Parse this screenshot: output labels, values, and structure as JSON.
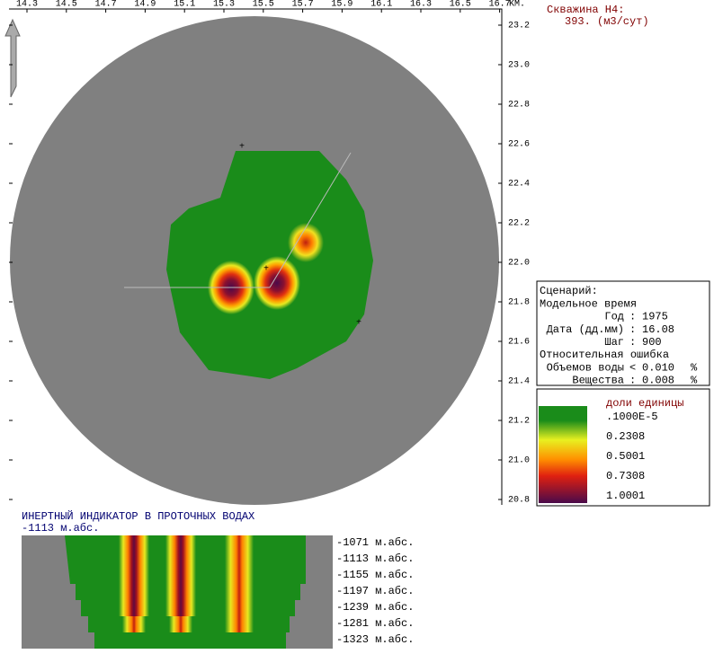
{
  "well": {
    "title": "Скважина H4:",
    "rate": "393. (м3/сут)"
  },
  "map": {
    "x_ticks": [
      "14.3",
      "14.5",
      "14.7",
      "14.9",
      "15.1",
      "15.3",
      "15.5",
      "15.7",
      "15.9",
      "16.1",
      "16.3",
      "16.5",
      "16.7"
    ],
    "x_unit": "KM.",
    "y_ticks": [
      "23.2",
      "23.0",
      "22.8",
      "22.6",
      "22.4",
      "22.2",
      "22.0",
      "21.8",
      "21.6",
      "21.4",
      "21.2",
      "21.0",
      "20.8"
    ]
  },
  "info": {
    "rows": [
      [
        "Сценарий:"
      ],
      [
        "Модельное время"
      ],
      [
        "Год",
        ":",
        "1975"
      ],
      [
        "Дата (дд.мм)",
        ":",
        "16.08"
      ],
      [
        "Шаг",
        ":",
        "900"
      ],
      [
        "Относительная ошибка"
      ],
      [
        "Объемов воды",
        "<",
        "0.010",
        "%"
      ],
      [
        "Вещества",
        ":",
        "0.008",
        "%"
      ]
    ]
  },
  "legend": {
    "title": "доли единицы",
    "labels": [
      ".1000E-5",
      "0.2308",
      "0.5001",
      "0.7308",
      "1.0001"
    ]
  },
  "section": {
    "title": "ИНЕРТНЫЙ ИНДИКАТОР В ПРОТОЧНЫХ ВОДАХ",
    "depth": "-1113 м.абс.",
    "levels": [
      "-1071 м.абс.",
      "-1113 м.абс.",
      "-1155 м.абс.",
      "-1197 м.абс.",
      "-1239 м.абс.",
      "-1281 м.абс.",
      "-1323 м.абс."
    ]
  }
}
